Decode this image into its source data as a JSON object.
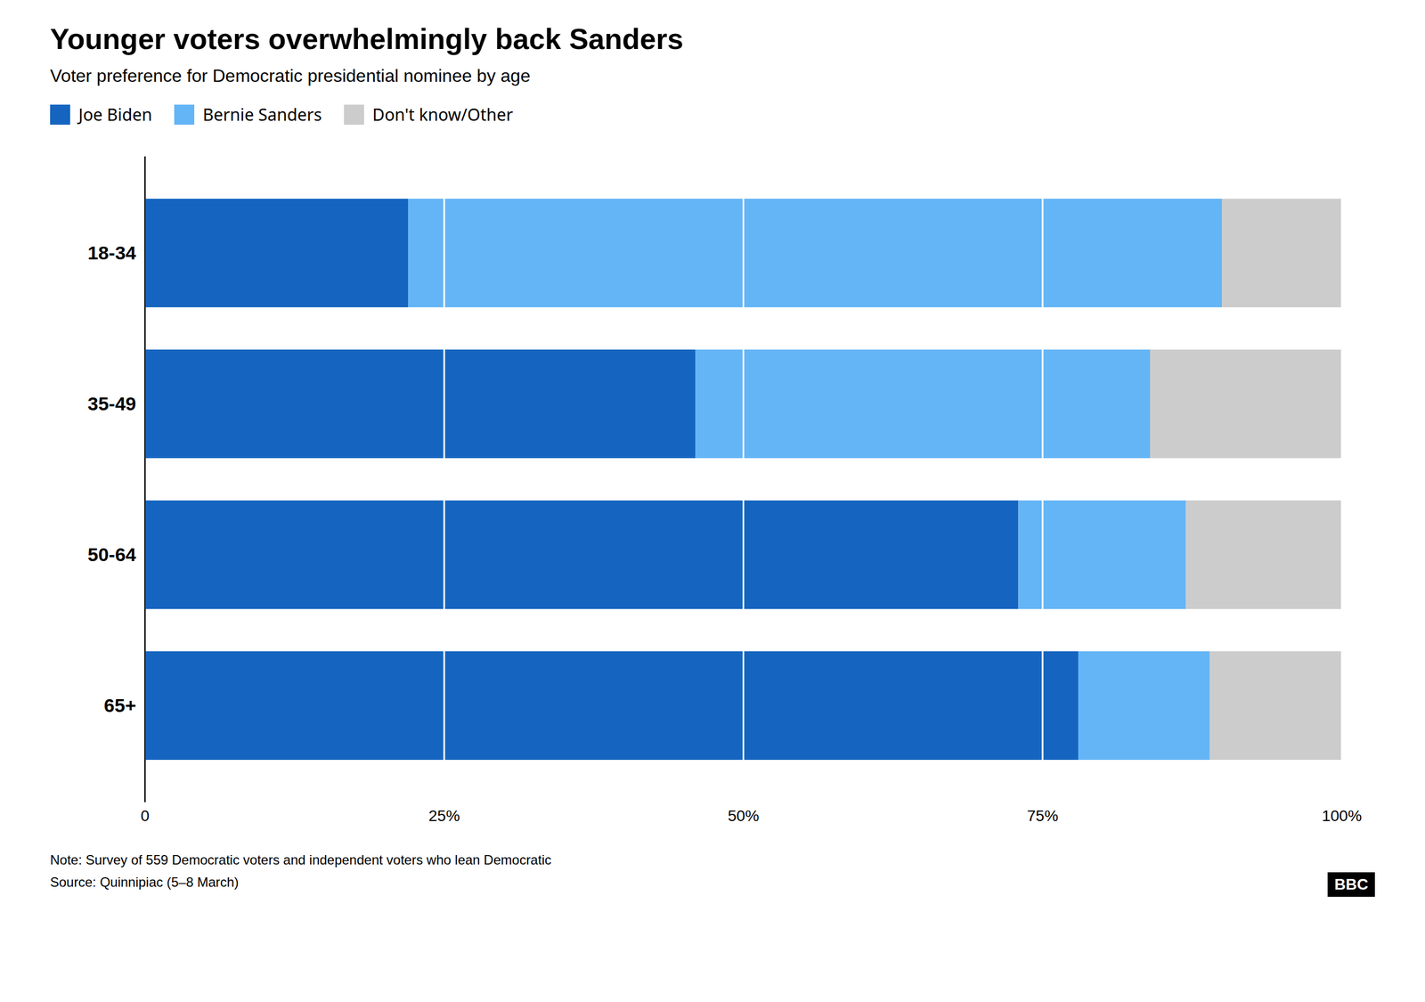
{
  "chart_data": {
    "type": "bar",
    "orientation": "horizontal",
    "stacked": true,
    "title": "Younger voters overwhelmingly back Sanders",
    "subtitle": "Voter preference for Democratic presidential nominee by age",
    "categories": [
      "18-34",
      "35-49",
      "50-64",
      "65+"
    ],
    "series": [
      {
        "name": "Joe Biden",
        "color": "#1565C0",
        "values": [
          22,
          46,
          73,
          78
        ]
      },
      {
        "name": "Bernie Sanders",
        "color": "#64B5F6",
        "values": [
          68,
          38,
          14,
          11
        ]
      },
      {
        "name": "Don't know/Other",
        "color": "#CCCCCC",
        "values": [
          10,
          16,
          13,
          11
        ]
      }
    ],
    "xlim": [
      0,
      100
    ],
    "xticks": [
      0,
      {
        "value": 25,
        "label": "25%"
      },
      {
        "value": 50,
        "label": "50%"
      },
      {
        "value": 75,
        "label": "75%"
      },
      {
        "value": 100,
        "label": "100%"
      }
    ],
    "grid": true,
    "legend": "top-left",
    "note": "Note: Survey of 559 Democratic voters and independent voters who lean Democratic",
    "source": "Source: Quinnipiac (5–8 March)",
    "logo": "BBC"
  }
}
